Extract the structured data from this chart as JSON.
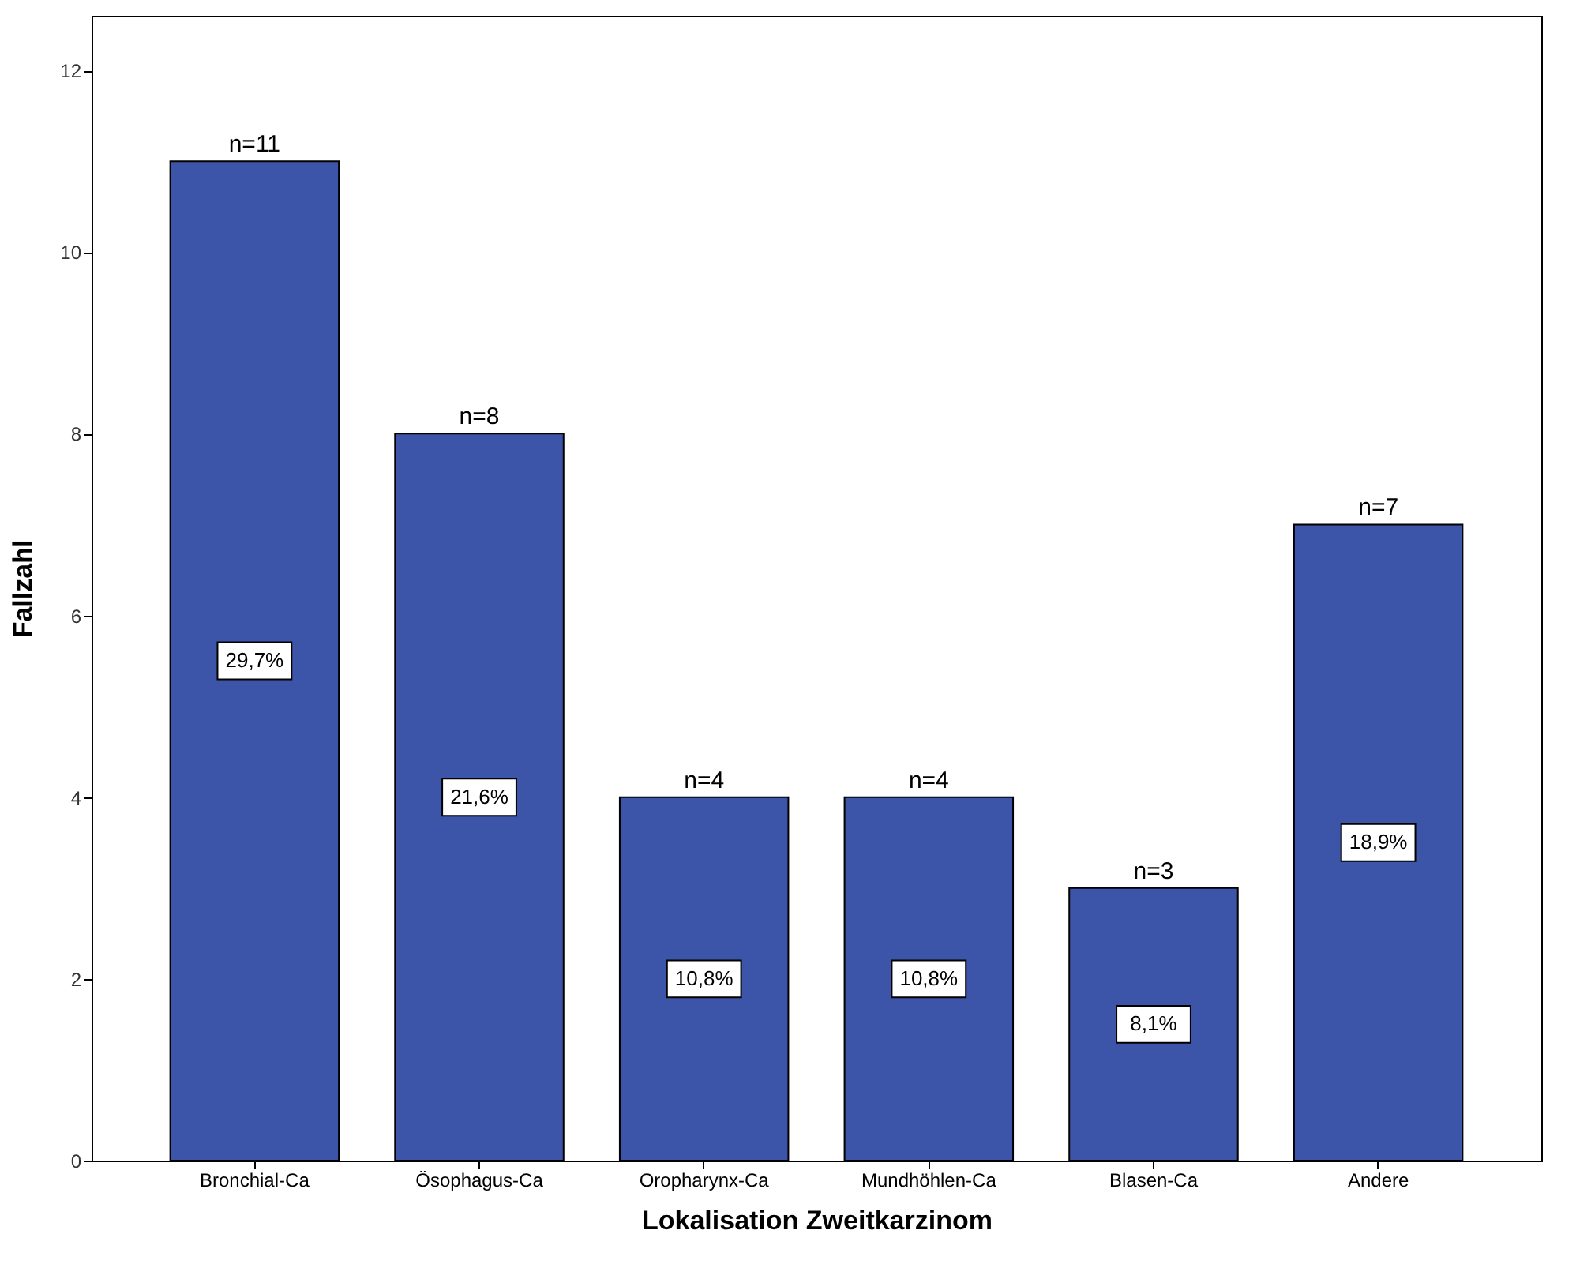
{
  "chart_data": {
    "type": "bar",
    "xlabel": "Lokalisation  Zweitkarzinom",
    "ylabel": "Fallzahl",
    "categories": [
      "Bronchial-Ca",
      "Ösophagus-Ca",
      "Oropharynx-Ca",
      "Mundhöhlen-Ca",
      "Blasen-Ca",
      "Andere"
    ],
    "values": [
      11,
      8,
      4,
      4,
      3,
      7
    ],
    "value_labels": [
      "n=11",
      "n=8",
      "n=4",
      "n=4",
      "n=3",
      "n=7"
    ],
    "color": "#3d55a8",
    "annotations": [
      "29,7%",
      "21,6%",
      "10,8%",
      "10,8%",
      "8,1%",
      "18,9%"
    ],
    "ylim": [
      0,
      12.6
    ],
    "yticks": [
      0,
      2,
      4,
      6,
      8,
      10,
      12
    ],
    "grid": false
  }
}
